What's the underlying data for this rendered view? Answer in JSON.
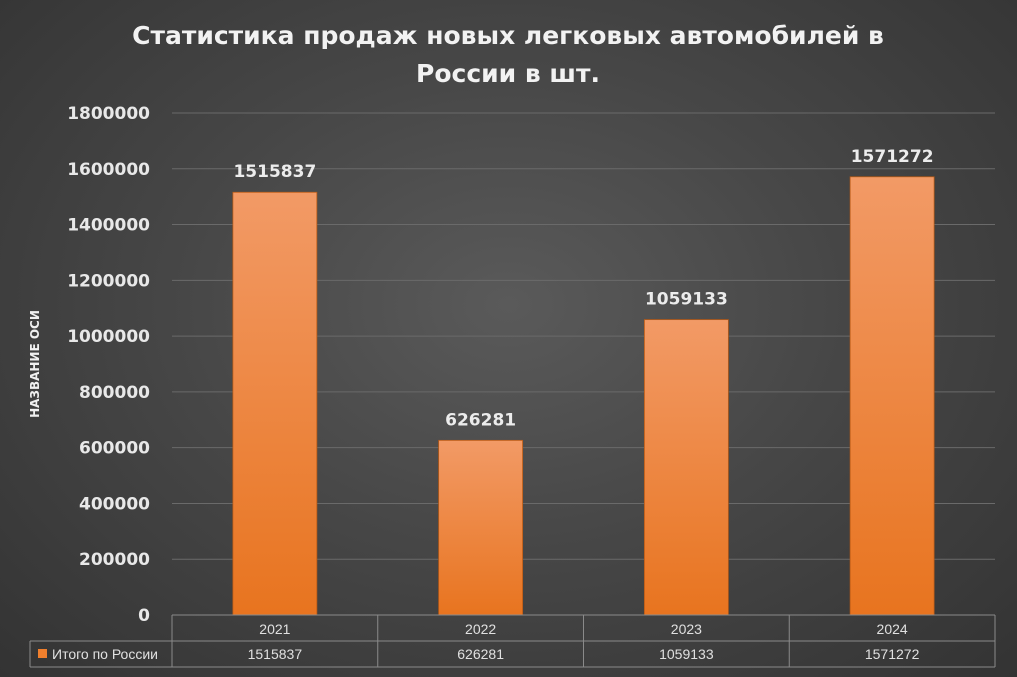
{
  "chart_data": {
    "type": "bar",
    "title": "Статистика продаж новых легковых автомобилей в России в шт.",
    "title_lines": [
      "Статистика продаж новых легковых автомобилей в",
      "России в шт."
    ],
    "ylabel": "НАЗВАНИЕ ОСИ",
    "xlabel": "",
    "ylim": [
      0,
      1800000
    ],
    "y_ticks": [
      0,
      200000,
      400000,
      600000,
      800000,
      1000000,
      1200000,
      1400000,
      1600000,
      1800000
    ],
    "grid": true,
    "categories": [
      "2021",
      "2022",
      "2023",
      "2024"
    ],
    "series": [
      {
        "name": "Итого по России",
        "values": [
          1515837,
          626281,
          1059133,
          1571272
        ],
        "color": "#f07f2d"
      }
    ],
    "data_labels": [
      "1515837",
      "626281",
      "1059133",
      "1571272"
    ],
    "data_table": true,
    "colors": {
      "background": "#474747",
      "bar_top": "#f29a66",
      "bar_bottom": "#e8741f",
      "text": "#f2f2f2"
    }
  }
}
